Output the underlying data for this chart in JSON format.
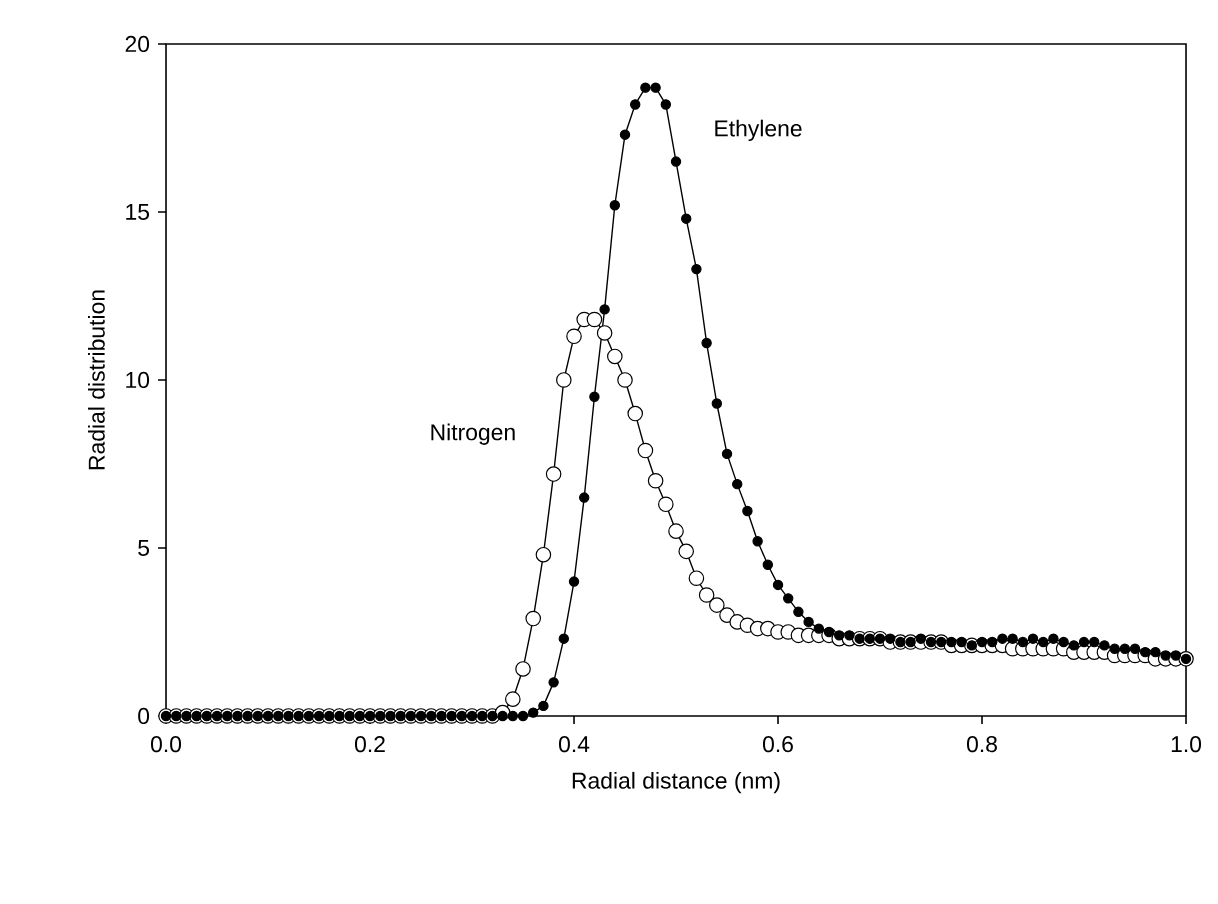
{
  "chart_data": {
    "type": "line",
    "xlabel": "Radial distance (nm)",
    "ylabel": "Radial distribution",
    "x": [
      0.0,
      0.01,
      0.02,
      0.03,
      0.04,
      0.05,
      0.06,
      0.07,
      0.08,
      0.09,
      0.1,
      0.11,
      0.12,
      0.13,
      0.14,
      0.15,
      0.16,
      0.17,
      0.18,
      0.19,
      0.2,
      0.21,
      0.22,
      0.23,
      0.24,
      0.25,
      0.26,
      0.27,
      0.28,
      0.29,
      0.3,
      0.31,
      0.32,
      0.33,
      0.34,
      0.35,
      0.36,
      0.37,
      0.38,
      0.39,
      0.4,
      0.41,
      0.42,
      0.43,
      0.44,
      0.45,
      0.46,
      0.47,
      0.48,
      0.49,
      0.5,
      0.51,
      0.52,
      0.53,
      0.54,
      0.55,
      0.56,
      0.57,
      0.58,
      0.59,
      0.6,
      0.61,
      0.62,
      0.63,
      0.64,
      0.65,
      0.66,
      0.67,
      0.68,
      0.69,
      0.7,
      0.71,
      0.72,
      0.73,
      0.74,
      0.75,
      0.76,
      0.77,
      0.78,
      0.79,
      0.8,
      0.81,
      0.82,
      0.83,
      0.84,
      0.85,
      0.86,
      0.87,
      0.88,
      0.89,
      0.9,
      0.91,
      0.92,
      0.93,
      0.94,
      0.95,
      0.96,
      0.97,
      0.98,
      0.99,
      1.0
    ],
    "series": [
      {
        "name": "Ethylene",
        "color": "#000000",
        "values": [
          0,
          0,
          0,
          0,
          0,
          0,
          0,
          0,
          0,
          0,
          0,
          0,
          0,
          0,
          0,
          0,
          0,
          0,
          0,
          0,
          0,
          0,
          0,
          0,
          0,
          0,
          0,
          0,
          0,
          0,
          0,
          0,
          0,
          0,
          0,
          0,
          0.1,
          0.3,
          1.0,
          2.3,
          4.0,
          6.5,
          9.5,
          12.1,
          15.2,
          17.3,
          18.2,
          18.7,
          18.7,
          18.2,
          16.5,
          14.8,
          13.3,
          11.1,
          9.3,
          7.8,
          6.9,
          6.1,
          5.2,
          4.5,
          3.9,
          3.5,
          3.1,
          2.8,
          2.6,
          2.5,
          2.4,
          2.4,
          2.3,
          2.3,
          2.3,
          2.3,
          2.2,
          2.2,
          2.3,
          2.2,
          2.2,
          2.2,
          2.2,
          2.1,
          2.2,
          2.2,
          2.3,
          2.3,
          2.2,
          2.3,
          2.2,
          2.3,
          2.2,
          2.1,
          2.2,
          2.2,
          2.1,
          2.0,
          2.0,
          2.0,
          1.9,
          1.9,
          1.8,
          1.8,
          1.7
        ]
      },
      {
        "name": "Nitrogen",
        "color": "#ffffff",
        "values": [
          0,
          0,
          0,
          0,
          0,
          0,
          0,
          0,
          0,
          0,
          0,
          0,
          0,
          0,
          0,
          0,
          0,
          0,
          0,
          0,
          0,
          0,
          0,
          0,
          0,
          0,
          0,
          0,
          0,
          0,
          0,
          0,
          0,
          0.1,
          0.5,
          1.4,
          2.9,
          4.8,
          7.2,
          10.0,
          11.3,
          11.8,
          11.8,
          11.4,
          10.7,
          10.0,
          9.0,
          7.9,
          7.0,
          6.3,
          5.5,
          4.9,
          4.1,
          3.6,
          3.3,
          3.0,
          2.8,
          2.7,
          2.6,
          2.6,
          2.5,
          2.5,
          2.4,
          2.4,
          2.4,
          2.4,
          2.3,
          2.3,
          2.3,
          2.3,
          2.3,
          2.2,
          2.2,
          2.2,
          2.2,
          2.2,
          2.2,
          2.1,
          2.1,
          2.1,
          2.1,
          2.1,
          2.1,
          2.0,
          2.0,
          2.0,
          2.0,
          2.0,
          2.0,
          1.9,
          1.9,
          1.9,
          1.9,
          1.8,
          1.8,
          1.8,
          1.8,
          1.7,
          1.7,
          1.7,
          1.7
        ]
      }
    ],
    "xlim": [
      0,
      1
    ],
    "xticks": [
      {
        "value": 0,
        "label": "0.0"
      },
      {
        "value": 0.2,
        "label": "0.2"
      },
      {
        "value": 0.4,
        "label": "0.4"
      },
      {
        "value": 0.6,
        "label": "0.6"
      },
      {
        "value": 0.8,
        "label": "0.8"
      },
      {
        "value": 1,
        "label": "1.0"
      }
    ],
    "ylim": [
      0,
      20
    ],
    "yticks": [
      0,
      5,
      10,
      15,
      20
    ],
    "marker": "circle",
    "line_style": "solid",
    "grid": false
  }
}
